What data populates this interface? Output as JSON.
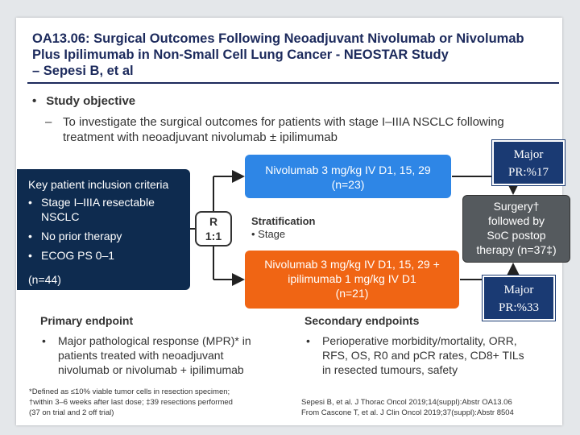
{
  "title": {
    "line1": "OA13.06: Surgical Outcomes Following Neoadjuvant Nivolumab or Nivolumab",
    "line2": "Plus Ipilimumab in Non-Small Cell Lung Cancer - NEOSTAR Study",
    "line3": "– Sepesi B, et al"
  },
  "objective": {
    "bullet": "•",
    "label": "Study objective",
    "dash": "–",
    "text": "To investigate the surgical outcomes for patients with stage I–IIIA NSCLC following treatment with neoadjuvant nivolumab ± ipilimumab"
  },
  "criteria": {
    "header": "Key patient inclusion criteria",
    "items": [
      "Stage I–IIIA resectable NSCLC",
      "No prior therapy",
      "ECOG PS 0–1"
    ],
    "n": "(n=44)"
  },
  "randomization": {
    "line1": "R",
    "line2": "1:1"
  },
  "stratification": {
    "header": "Stratification",
    "item": "•  Stage"
  },
  "arm1": {
    "line1": "Nivolumab 3 mg/kg IV D1, 15, 29",
    "line2": "(n=23)"
  },
  "arm2": {
    "line1": "Nivolumab 3 mg/kg IV D1, 15, 29 +",
    "line2": "ipilimumab 1 mg/kg IV D1",
    "line3": "(n=21)"
  },
  "surgery": {
    "line1": "Surgery†",
    "line2": "followed by",
    "line3": "SoC postop",
    "line4": "therapy (n=37‡)"
  },
  "mpr1": {
    "line1": "Major",
    "line2": "PR:%17"
  },
  "mpr2": {
    "line1": "Major",
    "line2": "PR:%33"
  },
  "primary": {
    "header": "Primary endpoint",
    "bullet": "•",
    "lines": [
      "Major pathological response (MPR)* in",
      "patients treated with neoadjuvant",
      "nivolumab or nivolumab + ipilimumab"
    ]
  },
  "secondary": {
    "header": "Secondary endpoints",
    "bullet": "•",
    "lines": [
      "Perioperative morbidity/mortality, ORR,",
      "RFS, OS, R0 and pCR rates, CD8+ TILs",
      "in resected tumours, safety"
    ]
  },
  "footnote": {
    "line1": "*Defined as ≤10% viable tumor cells in resection specimen;",
    "line2": "†within 3–6 weeks after last dose; ‡39 resections performed",
    "line3": "(37 on trial and 2 off trial)"
  },
  "citation": {
    "line1": "Sepesi B, et al. J Thorac Oncol 2019;14(suppl):Abstr OA13.06",
    "line2": "From Cascone T, et al. J Clin Oncol 2019;37(suppl):Abstr 8504"
  },
  "colors": {
    "title": "#1c2a5c",
    "criteria_bg": "#0e2b4f",
    "arm1_bg": "#2e86e6",
    "arm2_bg": "#f06514",
    "surgery_bg": "#555a5e",
    "mpr_bg": "#1a3a73"
  }
}
